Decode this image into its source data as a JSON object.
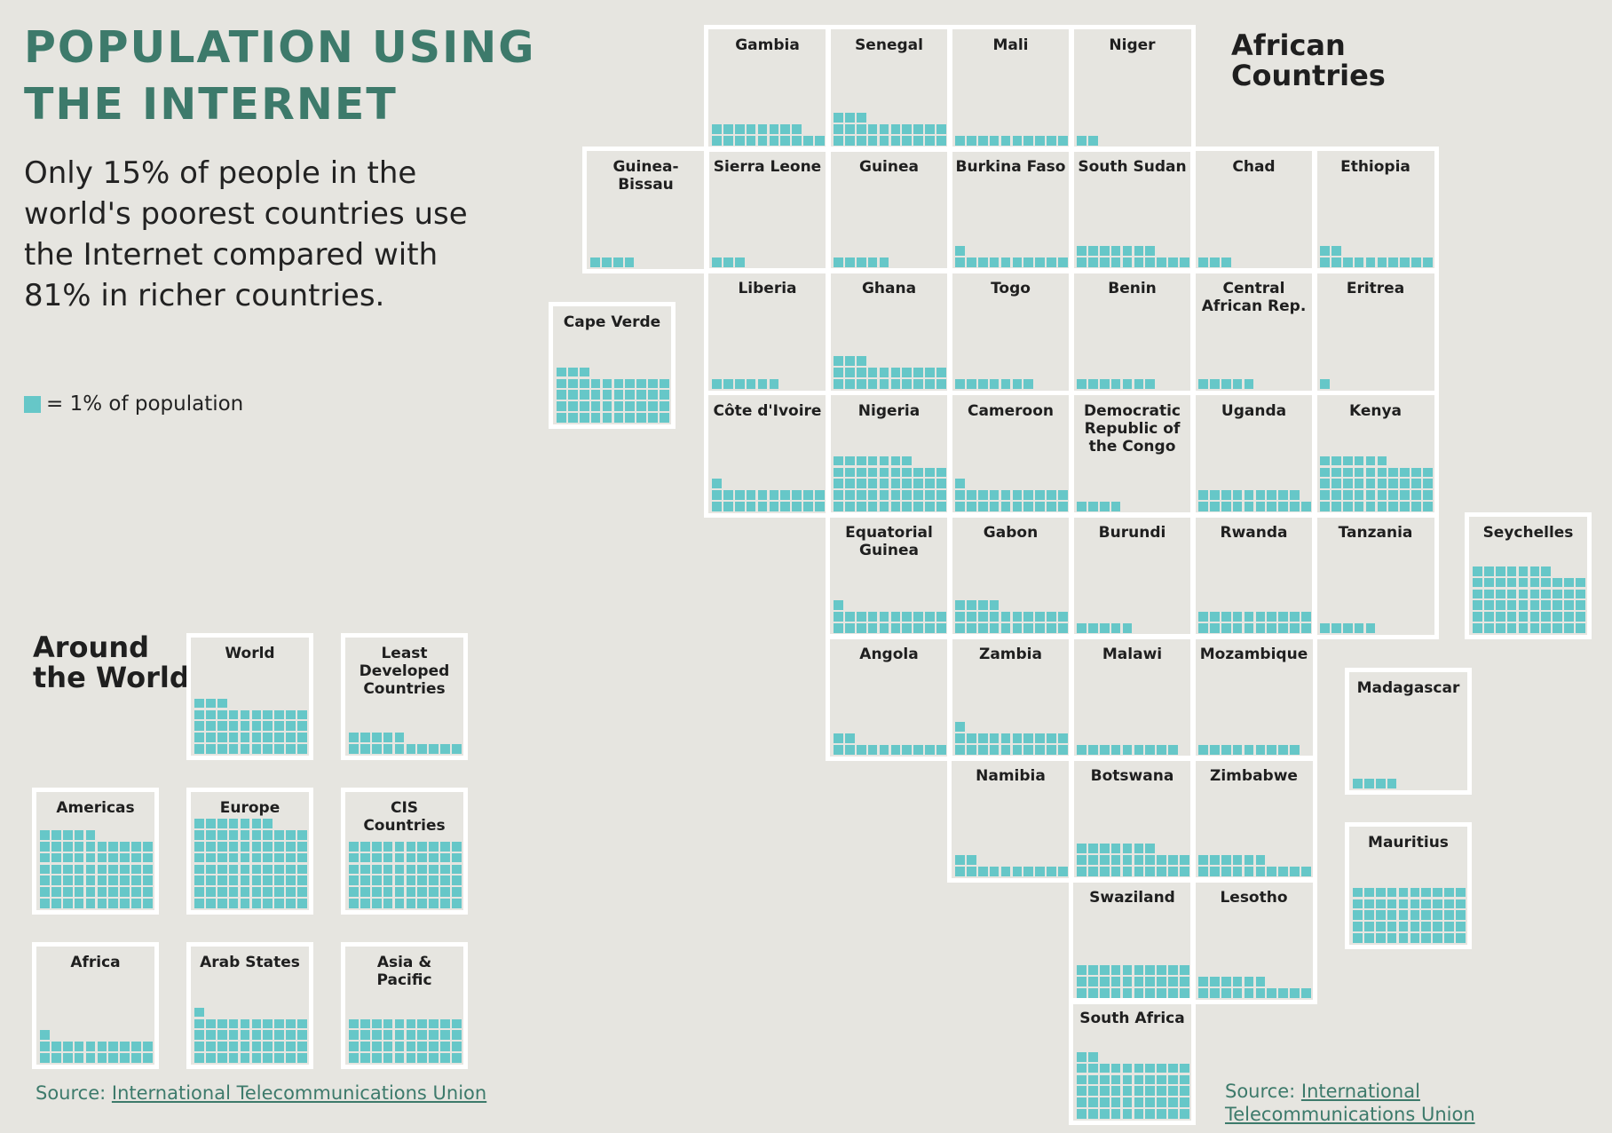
{
  "title": "POPULATION USING\nTHE INTERNET",
  "subtitle": "Only 15% of people in the world's poorest countries use the Internet compared with 81% in richer countries.",
  "legend": {
    "text": "= 1% of population",
    "color": "#66c7c8"
  },
  "africa_title": "African\nCountries",
  "world_title": "Around\nthe World",
  "source": {
    "prefix": "Source: ",
    "link": "International Telecommunications Union"
  },
  "chart_data": [
    {
      "type": "waffle",
      "title": "African Countries",
      "unit": "% of population using the Internet (1 square = 1%)",
      "items": [
        {
          "name": "Gambia",
          "value": 18
        },
        {
          "name": "Senegal",
          "value": 23
        },
        {
          "name": "Mali",
          "value": 10
        },
        {
          "name": "Niger",
          "value": 2
        },
        {
          "name": "Guinea-\nBissau",
          "value": 4
        },
        {
          "name": "Sierra Leone",
          "value": 3
        },
        {
          "name": "Guinea",
          "value": 5
        },
        {
          "name": "Burkina Faso",
          "value": 11
        },
        {
          "name": "South Sudan",
          "value": 17
        },
        {
          "name": "Chad",
          "value": 3
        },
        {
          "name": "Ethiopia",
          "value": 12
        },
        {
          "name": "Cape Verde",
          "value": 43
        },
        {
          "name": "Liberia",
          "value": 6
        },
        {
          "name": "Ghana",
          "value": 23
        },
        {
          "name": "Togo",
          "value": 7
        },
        {
          "name": "Benin",
          "value": 7
        },
        {
          "name": "Central\nAfrican Rep.",
          "value": 5
        },
        {
          "name": "Eritrea",
          "value": 1
        },
        {
          "name": "Côte d'Ivoire",
          "value": 21
        },
        {
          "name": "Nigeria",
          "value": 47
        },
        {
          "name": "Cameroon",
          "value": 21
        },
        {
          "name": "Democratic\nRepublic of\nthe Congo",
          "value": 4
        },
        {
          "name": "Uganda",
          "value": 19
        },
        {
          "name": "Kenya",
          "value": 46
        },
        {
          "name": "Equatorial\nGuinea",
          "value": 21
        },
        {
          "name": "Gabon",
          "value": 24
        },
        {
          "name": "Burundi",
          "value": 5
        },
        {
          "name": "Rwanda",
          "value": 20
        },
        {
          "name": "Tanzania",
          "value": 5
        },
        {
          "name": "Seychelles",
          "value": 57
        },
        {
          "name": "Angola",
          "value": 12
        },
        {
          "name": "Zambia",
          "value": 21
        },
        {
          "name": "Malawi",
          "value": 9
        },
        {
          "name": "Mozambique",
          "value": 9
        },
        {
          "name": "Madagascar",
          "value": 4
        },
        {
          "name": "Namibia",
          "value": 12
        },
        {
          "name": "Botswana",
          "value": 27
        },
        {
          "name": "Zimbabwe",
          "value": 16
        },
        {
          "name": "Mauritius",
          "value": 50
        },
        {
          "name": "Swaziland",
          "value": 30
        },
        {
          "name": "Lesotho",
          "value": 16
        },
        {
          "name": "South Africa",
          "value": 52
        }
      ]
    },
    {
      "type": "waffle",
      "title": "Around the World",
      "unit": "% of population using the Internet (1 square = 1%)",
      "items": [
        {
          "name": "World",
          "value": 43
        },
        {
          "name": "Least\nDeveloped\nCountries",
          "value": 15
        },
        {
          "name": "Americas",
          "value": 65
        },
        {
          "name": "Europe",
          "value": 77
        },
        {
          "name": "CIS\nCountries",
          "value": 60
        },
        {
          "name": "Africa",
          "value": 21
        },
        {
          "name": "Arab States",
          "value": 41
        },
        {
          "name": "Asia &\nPacific",
          "value": 40
        }
      ]
    }
  ]
}
